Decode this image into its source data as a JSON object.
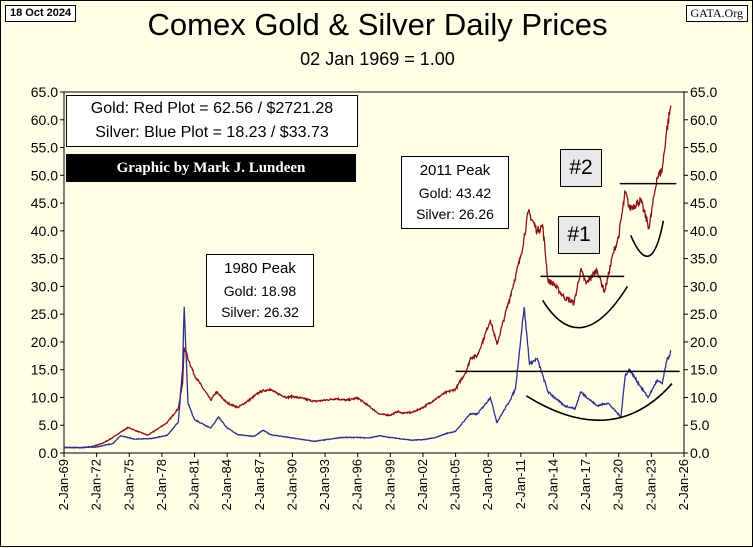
{
  "header": {
    "date": "18 Oct 2024",
    "source": "GATA.Org",
    "title": "Comex Gold & Silver Daily Prices",
    "subtitle": "02 Jan 1969 = 1.00"
  },
  "info": {
    "gold_line": "Gold: Red Plot =  62.56 / $2721.28",
    "silver_line": "Silver: Blue Plot = 18.23 / $33.73",
    "credit": "Graphic by Mark J. Lundeen"
  },
  "peaks": {
    "p1980": {
      "title": "1980 Peak",
      "gold": "Gold:  18.98",
      "silver": "Silver: 26.32"
    },
    "p2011": {
      "title": "2011 Peak",
      "gold": "Gold:  43.42",
      "silver": "Silver: 26.26"
    }
  },
  "tags": {
    "t1": "#1",
    "t2": "#2"
  },
  "colors": {
    "gold": "#8b1010",
    "silver": "#2e2e8e",
    "background": "#ffffe8"
  },
  "chart_data": {
    "type": "line",
    "ylim": [
      0,
      65
    ],
    "yticks": [
      "0.0",
      "5.0",
      "10.0",
      "15.0",
      "20.0",
      "25.0",
      "30.0",
      "35.0",
      "40.0",
      "45.0",
      "50.0",
      "55.0",
      "60.0",
      "65.0"
    ],
    "xlim": [
      "1969-01-02",
      "2026-01-02"
    ],
    "xticks": [
      "2-Jan-69",
      "2-Jan-72",
      "2-Jan-75",
      "2-Jan-78",
      "2-Jan-81",
      "2-Jan-84",
      "2-Jan-87",
      "2-Jan-90",
      "2-Jan-93",
      "2-Jan-96",
      "2-Jan-99",
      "2-Jan-02",
      "2-Jan-05",
      "2-Jan-08",
      "2-Jan-11",
      "2-Jan-14",
      "2-Jan-17",
      "2-Jan-20",
      "2-Jan-23",
      "2-Jan-26"
    ],
    "grid": false,
    "series": [
      {
        "name": "Gold",
        "x": [
          1969.0,
          1970.5,
          1971.5,
          1972.5,
          1973.5,
          1974.0,
          1974.9,
          1975.5,
          1976.7,
          1977.5,
          1978.5,
          1979.5,
          1979.9,
          1980.05,
          1980.5,
          1981.0,
          1982.5,
          1983.0,
          1984.0,
          1985.0,
          1986.0,
          1987.0,
          1987.9,
          1988.5,
          1989.5,
          1990.0,
          1991.0,
          1992.0,
          1993.0,
          1994.0,
          1995.0,
          1996.0,
          1997.0,
          1998.0,
          1999.0,
          1999.7,
          2000.0,
          2001.0,
          2002.0,
          2003.0,
          2004.0,
          2005.0,
          2006.0,
          2006.4,
          2007.0,
          2008.2,
          2008.8,
          2009.5,
          2010.0,
          2011.0,
          2011.7,
          2012.5,
          2013.0,
          2013.5,
          2014.0,
          2015.0,
          2015.9,
          2016.5,
          2017.0,
          2018.0,
          2018.7,
          2019.5,
          2020.0,
          2020.6,
          2021.0,
          2022.0,
          2022.8,
          2023.5,
          2024.0,
          2024.4,
          2024.8
        ],
        "values": [
          1.0,
          0.95,
          1.15,
          1.7,
          2.8,
          3.5,
          4.6,
          4.1,
          3.2,
          4.2,
          5.5,
          8.0,
          12.5,
          18.98,
          16.5,
          14.0,
          9.5,
          11.0,
          9.0,
          8.2,
          9.5,
          11.0,
          11.5,
          10.8,
          10.0,
          10.2,
          9.8,
          9.3,
          9.5,
          9.8,
          9.5,
          9.9,
          8.5,
          7.0,
          6.8,
          7.5,
          7.2,
          7.3,
          8.2,
          9.5,
          10.8,
          11.5,
          14.8,
          17.2,
          17.5,
          24.0,
          19.5,
          24.5,
          28.0,
          35.5,
          43.42,
          40.0,
          41.0,
          31.0,
          30.5,
          28.0,
          27.0,
          33.0,
          30.5,
          33.0,
          29.0,
          36.0,
          39.0,
          47.0,
          44.0,
          45.5,
          40.5,
          49.5,
          51.0,
          58.0,
          62.56
        ]
      },
      {
        "name": "Silver",
        "x": [
          1969.0,
          1970.5,
          1972.0,
          1973.5,
          1974.2,
          1975.5,
          1977.0,
          1978.5,
          1979.5,
          1979.9,
          1980.05,
          1980.4,
          1981.0,
          1982.5,
          1983.2,
          1984.0,
          1985.0,
          1986.5,
          1987.3,
          1988.0,
          1990.0,
          1992.0,
          1993.5,
          1994.5,
          1996.0,
          1997.0,
          1998.0,
          1999.0,
          2001.0,
          2002.0,
          2003.0,
          2004.3,
          2005.0,
          2006.3,
          2007.0,
          2008.2,
          2008.8,
          2010.0,
          2010.5,
          2011.3,
          2011.8,
          2012.5,
          2013.5,
          2015.0,
          2016.0,
          2016.5,
          2018.0,
          2019.0,
          2020.2,
          2020.6,
          2021.0,
          2022.0,
          2022.7,
          2023.5,
          2024.0,
          2024.4,
          2024.8
        ],
        "values": [
          1.0,
          0.95,
          1.1,
          1.7,
          3.1,
          2.5,
          2.6,
          3.2,
          5.5,
          15.0,
          26.32,
          9.0,
          6.0,
          4.5,
          6.5,
          4.5,
          3.3,
          3.0,
          4.1,
          3.3,
          2.7,
          2.1,
          2.5,
          2.8,
          2.8,
          2.7,
          3.1,
          2.8,
          2.3,
          2.4,
          2.7,
          3.6,
          3.9,
          7.0,
          7.0,
          10.0,
          5.5,
          9.5,
          11.5,
          26.26,
          16.0,
          17.0,
          11.0,
          8.5,
          8.0,
          11.0,
          8.5,
          9.0,
          6.5,
          14.0,
          15.0,
          12.0,
          10.0,
          13.0,
          12.5,
          16.5,
          18.23
        ]
      }
    ],
    "annotations": {
      "gold_resistance_1": 31.8,
      "gold_resistance_2": 48.5,
      "silver_resistance": 14.7
    }
  }
}
